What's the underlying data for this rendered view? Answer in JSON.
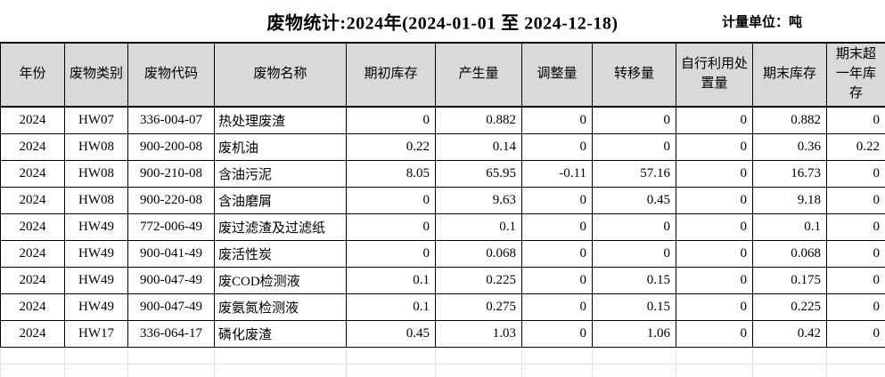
{
  "title": "废物统计:2024年(2024-01-01 至 2024-12-18)",
  "unit_label": "计量单位：吨",
  "table": {
    "columns": [
      "年份",
      "废物类别",
      "废物代码",
      "废物名称",
      "期初库存",
      "产生量",
      "调整量",
      "转移量",
      "自行利用处置量",
      "期末库存",
      "期末超一年库存"
    ],
    "rows": [
      [
        "2024",
        "HW07",
        "336-004-07",
        "热处理废渣",
        "0",
        "0.882",
        "0",
        "0",
        "0",
        "0.882",
        "0"
      ],
      [
        "2024",
        "HW08",
        "900-200-08",
        "废机油",
        "0.22",
        "0.14",
        "0",
        "0",
        "0",
        "0.36",
        "0.22"
      ],
      [
        "2024",
        "HW08",
        "900-210-08",
        "含油污泥",
        "8.05",
        "65.95",
        "-0.11",
        "57.16",
        "0",
        "16.73",
        "0"
      ],
      [
        "2024",
        "HW08",
        "900-220-08",
        "含油磨屑",
        "0",
        "9.63",
        "0",
        "0.45",
        "0",
        "9.18",
        "0"
      ],
      [
        "2024",
        "HW49",
        "772-006-49",
        "废过滤渣及过滤纸",
        "0",
        "0.1",
        "0",
        "0",
        "0",
        "0.1",
        "0"
      ],
      [
        "2024",
        "HW49",
        "900-041-49",
        "废活性炭",
        "0",
        "0.068",
        "0",
        "0",
        "0",
        "0.068",
        "0"
      ],
      [
        "2024",
        "HW49",
        "900-047-49",
        "废COD检测液",
        "0.1",
        "0.225",
        "0",
        "0.15",
        "0",
        "0.175",
        "0"
      ],
      [
        "2024",
        "HW49",
        "900-047-49",
        "废氨氮检测液",
        "0.1",
        "0.275",
        "0",
        "0.15",
        "0",
        "0.225",
        "0"
      ],
      [
        "2024",
        "HW17",
        "336-064-17",
        "磷化废渣",
        "0.45",
        "1.03",
        "0",
        "1.06",
        "0",
        "0.42",
        "0"
      ]
    ]
  },
  "colors": {
    "header_bg": "#d9d9d9",
    "table_border": "#000000",
    "ghost_grid": "#e3e3e3",
    "background": "#ffffff"
  }
}
